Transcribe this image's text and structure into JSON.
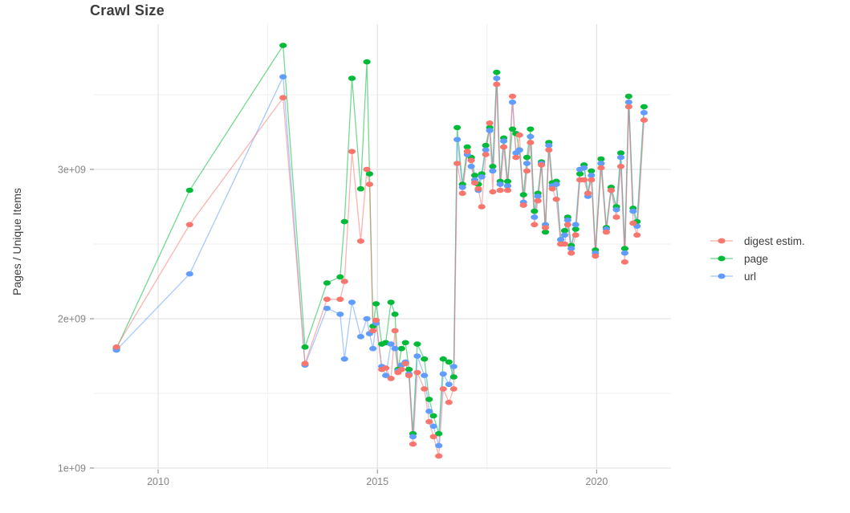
{
  "title": "Crawl Size",
  "y_axis": {
    "label": "Pages / Unique Items",
    "tick_labels": [
      "1e+09",
      "2e+09",
      "3e+09"
    ],
    "tick_values": [
      1,
      2,
      3
    ],
    "minor_breaks": [
      1.5,
      2.5,
      3.5
    ]
  },
  "x_axis": {
    "tick_labels": [
      "2010",
      "2015",
      "2020"
    ],
    "tick_values": [
      2010,
      2015,
      2020
    ],
    "minor_breaks": [
      2012.5,
      2017.5
    ]
  },
  "legend": [
    {
      "label": "digest estim.",
      "color": "#F8766D"
    },
    {
      "label": "page",
      "color": "#00BA38"
    },
    {
      "label": "url",
      "color": "#619CFF"
    }
  ],
  "colors": {
    "digest": "#F8766D",
    "page": "#00BA38",
    "url": "#619CFF",
    "grid_major": "#e3e3e3",
    "grid_minor": "#f0f0f0",
    "tick_text": "#858585",
    "tick_mark": "#9a9a9a"
  },
  "chart_data": {
    "type": "line",
    "title": "Crawl Size",
    "xlabel": "",
    "ylabel": "Pages / Unique Items",
    "values_unit": "billions (1e9) of pages / unique items per crawl",
    "x_unit": "year (decimal, crawl date)",
    "xlim": [
      2008.55,
      2021.7
    ],
    "ylim_e9": [
      0.99,
      3.97
    ],
    "grid": true,
    "legend_position": "right",
    "x": [
      2009.05,
      2010.72,
      2012.85,
      2013.35,
      2013.85,
      2014.15,
      2014.25,
      2014.42,
      2014.62,
      2014.76,
      2014.82,
      2014.9,
      2014.97,
      2015.1,
      2015.19,
      2015.31,
      2015.4,
      2015.47,
      2015.55,
      2015.64,
      2015.72,
      2015.81,
      2015.91,
      2016.07,
      2016.18,
      2016.28,
      2016.4,
      2016.5,
      2016.63,
      2016.74,
      2016.82,
      2016.94,
      2017.05,
      2017.14,
      2017.22,
      2017.3,
      2017.38,
      2017.47,
      2017.56,
      2017.63,
      2017.72,
      2017.8,
      2017.88,
      2017.97,
      2018.08,
      2018.16,
      2018.24,
      2018.33,
      2018.41,
      2018.49,
      2018.58,
      2018.66,
      2018.74,
      2018.83,
      2018.91,
      2018.99,
      2019.08,
      2019.18,
      2019.27,
      2019.34,
      2019.42,
      2019.52,
      2019.62,
      2019.71,
      2019.8,
      2019.88,
      2019.97,
      2020.1,
      2020.22,
      2020.33,
      2020.45,
      2020.55,
      2020.64,
      2020.73,
      2020.83,
      2020.92,
      2021.08
    ],
    "series": [
      {
        "name": "page",
        "color": "#00BA38",
        "values": [
          1.8,
          2.86,
          3.83,
          1.81,
          2.24,
          2.28,
          2.65,
          3.61,
          2.87,
          3.72,
          2.97,
          1.95,
          2.1,
          1.83,
          1.84,
          2.11,
          2.03,
          1.66,
          1.8,
          1.84,
          1.66,
          1.23,
          1.83,
          1.73,
          1.46,
          1.35,
          1.23,
          1.73,
          1.71,
          1.61,
          3.28,
          2.9,
          3.15,
          3.08,
          2.96,
          2.9,
          2.97,
          3.16,
          3.28,
          3.02,
          3.65,
          2.92,
          3.21,
          2.92,
          3.27,
          3.24,
          3.13,
          2.83,
          3.08,
          3.27,
          2.72,
          2.84,
          3.05,
          2.58,
          3.18,
          2.91,
          2.92,
          2.53,
          2.59,
          2.68,
          2.49,
          2.6,
          2.97,
          3.03,
          2.84,
          2.99,
          2.46,
          3.07,
          2.61,
          2.88,
          2.75,
          3.11,
          2.47,
          3.49,
          2.74,
          2.65,
          3.42
        ]
      },
      {
        "name": "url",
        "color": "#619CFF",
        "values": [
          1.79,
          2.3,
          3.62,
          1.69,
          2.07,
          2.03,
          1.73,
          2.11,
          1.88,
          2.0,
          1.9,
          1.8,
          1.97,
          1.68,
          1.62,
          1.83,
          1.8,
          1.65,
          1.69,
          1.71,
          1.63,
          1.21,
          1.75,
          1.62,
          1.38,
          1.28,
          1.15,
          1.63,
          1.56,
          1.68,
          3.2,
          2.88,
          3.1,
          3.02,
          2.93,
          2.86,
          2.95,
          3.13,
          3.26,
          2.99,
          3.61,
          2.9,
          3.19,
          2.89,
          3.45,
          3.11,
          3.13,
          2.78,
          3.04,
          3.22,
          2.68,
          2.82,
          3.04,
          2.63,
          3.16,
          2.89,
          2.9,
          2.53,
          2.56,
          2.66,
          2.47,
          2.63,
          3.0,
          3.01,
          2.82,
          2.96,
          2.44,
          3.04,
          2.6,
          2.86,
          2.73,
          3.08,
          2.44,
          3.45,
          2.72,
          2.62,
          3.38
        ]
      },
      {
        "name": "digest estim.",
        "color": "#F8766D",
        "values": [
          1.81,
          2.63,
          3.48,
          1.7,
          2.13,
          2.13,
          2.25,
          3.12,
          2.52,
          3.0,
          2.9,
          1.92,
          1.99,
          1.66,
          1.67,
          1.6,
          1.92,
          1.64,
          1.66,
          1.7,
          1.62,
          1.16,
          1.64,
          1.53,
          1.31,
          1.21,
          1.08,
          1.53,
          1.44,
          1.53,
          3.04,
          2.84,
          3.12,
          3.06,
          2.91,
          2.87,
          2.75,
          3.1,
          3.31,
          2.85,
          3.57,
          2.86,
          3.15,
          2.86,
          3.49,
          3.08,
          3.23,
          2.76,
          2.99,
          3.18,
          2.63,
          2.79,
          3.03,
          2.61,
          3.13,
          2.87,
          2.8,
          2.5,
          2.5,
          2.63,
          2.44,
          2.56,
          2.93,
          2.93,
          2.84,
          2.93,
          2.42,
          3.01,
          2.58,
          2.86,
          2.68,
          3.02,
          2.38,
          3.42,
          2.64,
          2.56,
          3.33
        ]
      }
    ]
  }
}
